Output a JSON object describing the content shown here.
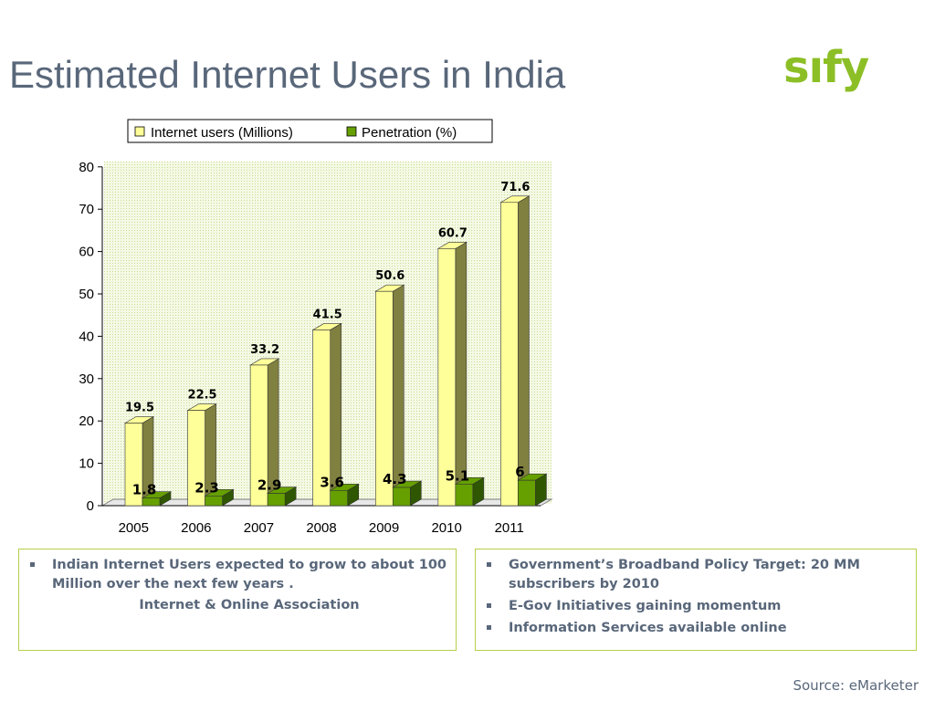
{
  "slide": {
    "title": "Estimated Internet Users in India",
    "logo_text": "sıfy",
    "source": "Source: eMarketer"
  },
  "chart_data": {
    "type": "bar",
    "categories": [
      "2005",
      "2006",
      "2007",
      "2008",
      "2009",
      "2010",
      "2011"
    ],
    "series": [
      {
        "name": "Internet users (Millions)",
        "color": "#ffff99",
        "side_color": "#808040",
        "values": [
          19.5,
          22.5,
          33.2,
          41.5,
          50.6,
          60.7,
          71.6
        ],
        "labels": [
          "19.5",
          "22.5",
          "33.2",
          "41.5",
          "50.6",
          "60.7",
          "71.6"
        ]
      },
      {
        "name": "Penetration (%)",
        "color": "#66a000",
        "side_color": "#2f5600",
        "values": [
          1.8,
          2.3,
          2.9,
          3.6,
          4.3,
          5.1,
          6
        ],
        "labels": [
          "1.8",
          "2.3",
          "2.9",
          "3.6",
          "4.3",
          "5.1",
          "6"
        ]
      }
    ],
    "ylim": [
      0,
      80
    ],
    "yticks": [
      "0",
      "10",
      "20",
      "30",
      "40",
      "50",
      "60",
      "70",
      "80"
    ],
    "legend_position": "top",
    "grid": false,
    "background": "dotted light green plot area"
  },
  "info_boxes": {
    "left": {
      "text": "Indian Internet Users expected to grow to about 100 Million  over the next few years .",
      "attribution": "Internet & Online Association"
    },
    "right": {
      "items": [
        "Government’s Broadband Policy Target: 20 MM subscribers by 2010",
        "E-Gov Initiatives gaining momentum",
        "Information Services available online"
      ]
    }
  },
  "colors": {
    "title": "#59677a",
    "accent": "#8cbf26",
    "box_border": "#b5d04a"
  }
}
